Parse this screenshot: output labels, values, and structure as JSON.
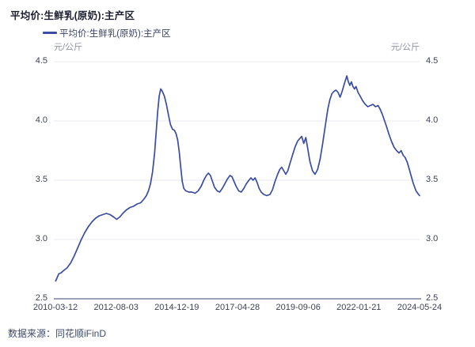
{
  "title": "平均价:生鲜乳(原奶):主产区",
  "legend": {
    "label": "平均价:生鲜乳(原奶):主产区",
    "line_color": "#3a4da1"
  },
  "axes": {
    "unit_left": "元/公斤",
    "unit_right": "元/公斤",
    "y_ticks": [
      "4.5",
      "4.0",
      "3.5",
      "3.0",
      "2.5"
    ],
    "x_ticks": [
      "2010-03-12",
      "2012-08-03",
      "2014-12-19",
      "2017-04-28",
      "2019-09-06",
      "2022-01-21",
      "2024-05-24"
    ]
  },
  "footer": {
    "source": "数据来源：同花顺iFinD"
  },
  "chart_data": {
    "type": "line",
    "title": "平均价:生鲜乳(原奶):主产区",
    "xlabel": "",
    "ylabel": "元/公斤",
    "ylim": [
      2.5,
      4.5
    ],
    "xlim_decimal_years": [
      2010.19,
      2024.4
    ],
    "grid": true,
    "legend_position": "top-left",
    "x_tick_labels": [
      "2010-03-12",
      "2012-08-03",
      "2014-12-19",
      "2017-04-28",
      "2019-09-06",
      "2022-01-21",
      "2024-05-24"
    ],
    "y_tick_values": [
      2.5,
      3.0,
      3.5,
      4.0,
      4.5
    ],
    "series": [
      {
        "name": "平均价:生鲜乳(原奶):主产区",
        "unit": "元/公斤",
        "color": "#3a4da1",
        "points_format": "[decimal_year, price_yuan_per_kg]",
        "points": [
          [
            2010.2,
            2.65
          ],
          [
            2010.26,
            2.68
          ],
          [
            2010.32,
            2.71
          ],
          [
            2010.42,
            2.72
          ],
          [
            2010.52,
            2.74
          ],
          [
            2010.64,
            2.76
          ],
          [
            2010.78,
            2.8
          ],
          [
            2010.92,
            2.86
          ],
          [
            2011.06,
            2.93
          ],
          [
            2011.2,
            3.0
          ],
          [
            2011.34,
            3.06
          ],
          [
            2011.48,
            3.11
          ],
          [
            2011.62,
            3.15
          ],
          [
            2011.76,
            3.18
          ],
          [
            2011.9,
            3.2
          ],
          [
            2012.04,
            3.21
          ],
          [
            2012.18,
            3.22
          ],
          [
            2012.32,
            3.21
          ],
          [
            2012.46,
            3.19
          ],
          [
            2012.58,
            3.17
          ],
          [
            2012.7,
            3.19
          ],
          [
            2012.82,
            3.22
          ],
          [
            2012.96,
            3.25
          ],
          [
            2013.1,
            3.27
          ],
          [
            2013.24,
            3.28
          ],
          [
            2013.38,
            3.3
          ],
          [
            2013.52,
            3.31
          ],
          [
            2013.64,
            3.34
          ],
          [
            2013.74,
            3.37
          ],
          [
            2013.82,
            3.41
          ],
          [
            2013.9,
            3.47
          ],
          [
            2013.98,
            3.57
          ],
          [
            2014.06,
            3.73
          ],
          [
            2014.12,
            3.9
          ],
          [
            2014.18,
            4.08
          ],
          [
            2014.24,
            4.21
          ],
          [
            2014.3,
            4.27
          ],
          [
            2014.36,
            4.25
          ],
          [
            2014.44,
            4.21
          ],
          [
            2014.52,
            4.14
          ],
          [
            2014.6,
            4.05
          ],
          [
            2014.68,
            3.97
          ],
          [
            2014.76,
            3.93
          ],
          [
            2014.84,
            3.92
          ],
          [
            2014.9,
            3.89
          ],
          [
            2014.96,
            3.84
          ],
          [
            2015.02,
            3.74
          ],
          [
            2015.08,
            3.61
          ],
          [
            2015.14,
            3.49
          ],
          [
            2015.2,
            3.43
          ],
          [
            2015.28,
            3.41
          ],
          [
            2015.4,
            3.4
          ],
          [
            2015.52,
            3.4
          ],
          [
            2015.64,
            3.39
          ],
          [
            2015.76,
            3.41
          ],
          [
            2015.88,
            3.45
          ],
          [
            2015.98,
            3.5
          ],
          [
            2016.08,
            3.54
          ],
          [
            2016.16,
            3.56
          ],
          [
            2016.24,
            3.54
          ],
          [
            2016.32,
            3.49
          ],
          [
            2016.4,
            3.44
          ],
          [
            2016.5,
            3.41
          ],
          [
            2016.6,
            3.4
          ],
          [
            2016.7,
            3.43
          ],
          [
            2016.8,
            3.47
          ],
          [
            2016.9,
            3.51
          ],
          [
            2017.0,
            3.54
          ],
          [
            2017.08,
            3.53
          ],
          [
            2017.16,
            3.49
          ],
          [
            2017.24,
            3.45
          ],
          [
            2017.34,
            3.41
          ],
          [
            2017.44,
            3.4
          ],
          [
            2017.54,
            3.43
          ],
          [
            2017.64,
            3.47
          ],
          [
            2017.74,
            3.5
          ],
          [
            2017.82,
            3.52
          ],
          [
            2017.9,
            3.5
          ],
          [
            2017.98,
            3.52
          ],
          [
            2018.06,
            3.48
          ],
          [
            2018.14,
            3.43
          ],
          [
            2018.22,
            3.4
          ],
          [
            2018.32,
            3.38
          ],
          [
            2018.44,
            3.37
          ],
          [
            2018.56,
            3.38
          ],
          [
            2018.66,
            3.42
          ],
          [
            2018.76,
            3.49
          ],
          [
            2018.86,
            3.55
          ],
          [
            2018.94,
            3.59
          ],
          [
            2019.02,
            3.61
          ],
          [
            2019.1,
            3.58
          ],
          [
            2019.18,
            3.55
          ],
          [
            2019.26,
            3.58
          ],
          [
            2019.34,
            3.64
          ],
          [
            2019.44,
            3.71
          ],
          [
            2019.54,
            3.78
          ],
          [
            2019.64,
            3.83
          ],
          [
            2019.72,
            3.85
          ],
          [
            2019.8,
            3.87
          ],
          [
            2019.88,
            3.81
          ],
          [
            2019.96,
            3.86
          ],
          [
            2020.04,
            3.76
          ],
          [
            2020.12,
            3.66
          ],
          [
            2020.22,
            3.58
          ],
          [
            2020.32,
            3.55
          ],
          [
            2020.42,
            3.59
          ],
          [
            2020.52,
            3.68
          ],
          [
            2020.62,
            3.81
          ],
          [
            2020.72,
            3.96
          ],
          [
            2020.82,
            4.1
          ],
          [
            2020.9,
            4.18
          ],
          [
            2020.98,
            4.23
          ],
          [
            2021.06,
            4.25
          ],
          [
            2021.14,
            4.26
          ],
          [
            2021.22,
            4.24
          ],
          [
            2021.3,
            4.2
          ],
          [
            2021.38,
            4.25
          ],
          [
            2021.46,
            4.31
          ],
          [
            2021.56,
            4.38
          ],
          [
            2021.62,
            4.33
          ],
          [
            2021.68,
            4.3
          ],
          [
            2021.74,
            4.33
          ],
          [
            2021.8,
            4.29
          ],
          [
            2021.86,
            4.27
          ],
          [
            2021.92,
            4.29
          ],
          [
            2022.0,
            4.24
          ],
          [
            2022.08,
            4.21
          ],
          [
            2022.18,
            4.17
          ],
          [
            2022.28,
            4.14
          ],
          [
            2022.38,
            4.12
          ],
          [
            2022.48,
            4.13
          ],
          [
            2022.58,
            4.14
          ],
          [
            2022.68,
            4.12
          ],
          [
            2022.78,
            4.13
          ],
          [
            2022.86,
            4.1
          ],
          [
            2022.94,
            4.06
          ],
          [
            2023.02,
            4.01
          ],
          [
            2023.1,
            3.96
          ],
          [
            2023.2,
            3.89
          ],
          [
            2023.3,
            3.83
          ],
          [
            2023.4,
            3.78
          ],
          [
            2023.5,
            3.75
          ],
          [
            2023.6,
            3.73
          ],
          [
            2023.68,
            3.75
          ],
          [
            2023.76,
            3.71
          ],
          [
            2023.84,
            3.69
          ],
          [
            2023.92,
            3.65
          ],
          [
            2024.0,
            3.59
          ],
          [
            2024.08,
            3.53
          ],
          [
            2024.16,
            3.47
          ],
          [
            2024.26,
            3.41
          ],
          [
            2024.36,
            3.38
          ],
          [
            2024.4,
            3.37
          ]
        ]
      }
    ]
  }
}
